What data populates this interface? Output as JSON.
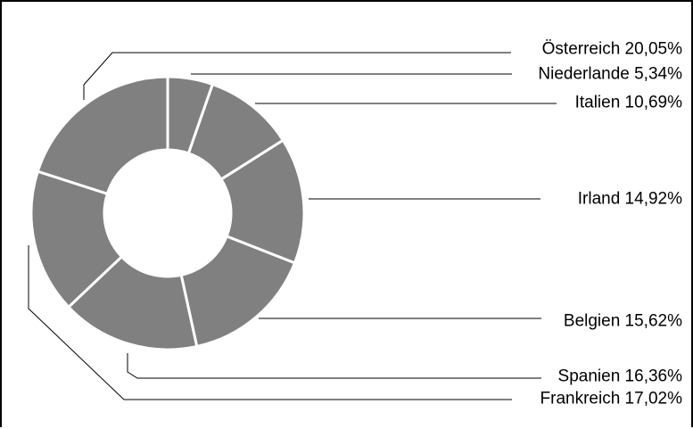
{
  "chart_data": {
    "type": "pie",
    "style": "donut",
    "slice_color": "#808080",
    "slice_border_color": "#ffffff",
    "slices": [
      {
        "label": "Niederlande",
        "value": 5.34,
        "value_text": "5,34%",
        "display": "Niederlande 5,34%"
      },
      {
        "label": "Italien",
        "value": 10.69,
        "value_text": "10,69%",
        "display": "Italien 10,69%"
      },
      {
        "label": "Irland",
        "value": 14.92,
        "value_text": "14,92%",
        "display": "Irland 14,92%"
      },
      {
        "label": "Belgien",
        "value": 15.62,
        "value_text": "15,62%",
        "display": "Belgien 15,62%"
      },
      {
        "label": "Spanien",
        "value": 16.36,
        "value_text": "16,36%",
        "display": "Spanien 16,36%"
      },
      {
        "label": "Frankreich",
        "value": 17.02,
        "value_text": "17,02%",
        "display": "Frankreich 17,02%"
      },
      {
        "label": "Österreich",
        "value": 20.05,
        "value_text": "20,05%",
        "display": "Österreich 20,05%"
      }
    ]
  }
}
